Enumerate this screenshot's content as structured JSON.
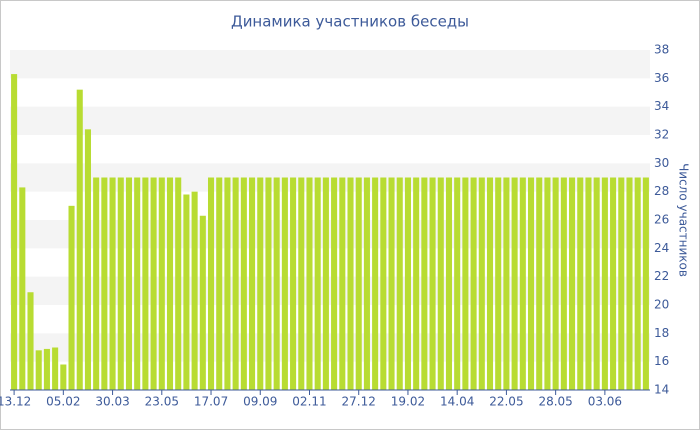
{
  "chart_data": {
    "type": "bar",
    "title": "Динамика участников беседы",
    "y_axis_label": "Число участников",
    "categories": [
      "13.12",
      null,
      null,
      null,
      null,
      null,
      "05.02",
      null,
      null,
      null,
      null,
      null,
      "30.03",
      null,
      null,
      null,
      null,
      null,
      "23.05",
      null,
      null,
      null,
      null,
      null,
      "17.07",
      null,
      null,
      null,
      null,
      null,
      "09.09",
      null,
      null,
      null,
      null,
      null,
      "02.11",
      null,
      null,
      null,
      null,
      null,
      "27.12",
      null,
      null,
      null,
      null,
      null,
      "19.02",
      null,
      null,
      null,
      null,
      null,
      "14.04",
      null,
      null,
      null,
      null,
      null,
      "22.05",
      null,
      null,
      null,
      null,
      null,
      "28.05",
      null,
      null,
      null,
      null,
      null,
      "03.06",
      null,
      null,
      null,
      null,
      null
    ],
    "values": [
      36.3,
      28.3,
      20.9,
      16.8,
      16.9,
      17.0,
      15.8,
      27.0,
      35.2,
      32.4,
      29,
      29,
      29,
      29,
      29,
      29,
      29,
      29,
      29,
      29,
      29,
      27.8,
      28.0,
      26.3,
      29,
      29,
      29,
      29,
      29,
      29,
      29,
      29,
      29,
      29,
      29,
      29,
      29,
      29,
      29,
      29,
      29,
      29,
      29,
      29,
      29,
      29,
      29,
      29,
      29,
      29,
      29,
      29,
      29,
      29,
      29,
      29,
      29,
      29,
      29,
      29,
      29,
      29,
      29,
      29,
      29,
      29,
      29,
      29,
      29,
      29,
      29,
      29,
      29,
      29,
      29,
      29,
      29,
      29
    ],
    "color": "#b8dc32",
    "ylim": [
      14,
      38
    ],
    "yticks": [
      14,
      16,
      18,
      20,
      22,
      24,
      26,
      28,
      30,
      32,
      34,
      36,
      38
    ],
    "grid": true
  }
}
